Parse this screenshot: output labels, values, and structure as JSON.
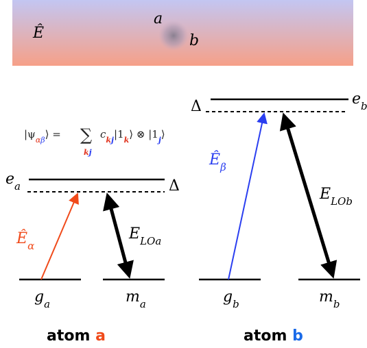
{
  "field": {
    "symbol": "Ê",
    "atom_a": "a",
    "atom_b": "b"
  },
  "state": {
    "parts": [
      "|ψ",
      "α",
      "β",
      "⟩ = ",
      "∑",
      "k",
      "j",
      "c",
      "k",
      "j",
      "|1",
      "k",
      "⟩ ⊗ |1",
      "j",
      "⟩"
    ]
  },
  "atoms": [
    {
      "caption": [
        "atom",
        "a"
      ],
      "excited": [
        "e",
        "a"
      ],
      "ground": [
        "g",
        "a"
      ],
      "metastable": [
        "m",
        "a"
      ],
      "detuning": "Δ",
      "probe": [
        "Ê",
        "α"
      ],
      "control": [
        "E",
        "LOa"
      ]
    },
    {
      "caption": [
        "atom",
        "b"
      ],
      "excited": [
        "e",
        "b"
      ],
      "ground": [
        "g",
        "b"
      ],
      "metastable": [
        "m",
        "b"
      ],
      "detuning": "Δ",
      "probe": [
        "Ê",
        "β"
      ],
      "control": [
        "E",
        "LOb"
      ]
    }
  ]
}
